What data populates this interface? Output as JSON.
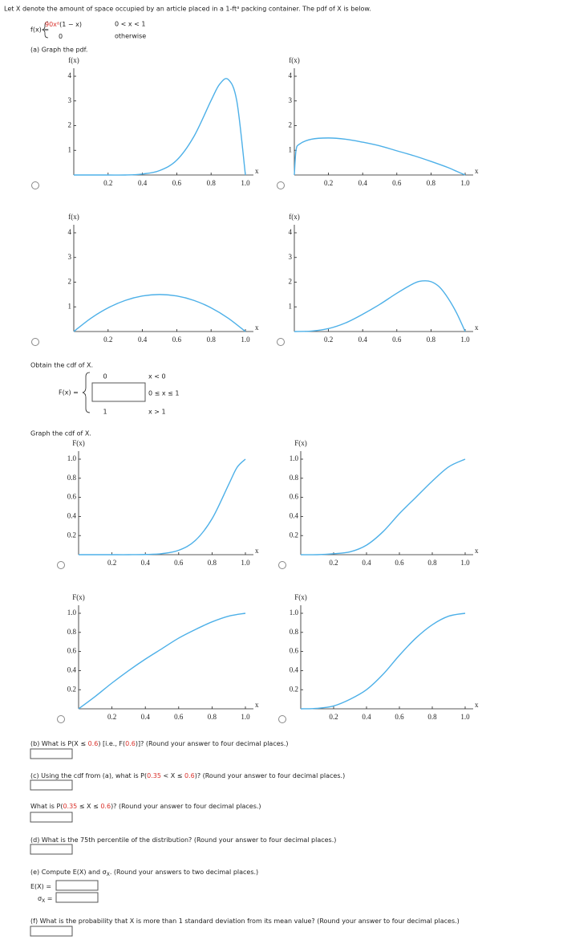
{
  "intro": "Let X denote the amount of space occupied by an article placed in a 1-ft³ packing container. The pdf of X is below.",
  "pdf": {
    "lhs": "f(x) =",
    "cases": [
      {
        "expr": [
          {
            "text": "90x⁸",
            "color": "#d9312b"
          },
          {
            "text": "(1 − x)"
          }
        ],
        "condition": "0 < x < 1"
      },
      {
        "expr": [
          {
            "text": "0"
          }
        ],
        "condition": "otherwise"
      }
    ]
  },
  "part_a": "(a) Graph the pdf.",
  "cdf_prompt": "Obtain the cdf of X.",
  "cdf": {
    "lhs": "F(x) =",
    "cases": [
      {
        "value": "0",
        "condition": "x < 0"
      },
      {
        "condition": "0 ≤ x ≤ 1"
      },
      {
        "value": "1",
        "condition": "x > 1"
      }
    ]
  },
  "cdf_graph_prompt": "Graph the cdf of X.",
  "chart_data": [
    {
      "type": "line",
      "y_label": "f(x)",
      "x_label": "x",
      "color": "#4db0e8",
      "xlim": [
        0,
        1
      ],
      "ylim": [
        0,
        4
      ],
      "xticks": [
        0.2,
        0.4,
        0.6,
        0.8,
        {
          "value": 1,
          "label": "1.0"
        }
      ],
      "yticks": [
        1,
        2,
        3,
        4
      ],
      "x": [
        0,
        0.1,
        0.2,
        0.3,
        0.4,
        0.5,
        0.6,
        0.7,
        0.8,
        0.85,
        0.9,
        0.95,
        1
      ],
      "values": [
        0,
        0,
        0,
        0,
        0.04,
        0.18,
        0.6,
        1.56,
        3.02,
        3.68,
        3.87,
        2.99,
        0
      ]
    },
    {
      "type": "line",
      "y_label": "f(x)",
      "x_label": "x",
      "color": "#4db0e8",
      "xlim": [
        0,
        1
      ],
      "ylim": [
        0,
        4
      ],
      "xticks": [
        0.2,
        0.4,
        0.6,
        0.8,
        {
          "value": 1,
          "label": "1.0"
        }
      ],
      "yticks": [
        1,
        2,
        3,
        4
      ],
      "x": [
        0,
        0.01,
        0.03,
        0.1,
        0.2,
        0.3,
        0.4,
        0.5,
        0.6,
        0.7,
        0.8,
        0.9,
        0.95,
        1
      ],
      "values": [
        0,
        1,
        1.25,
        1.45,
        1.5,
        1.45,
        1.33,
        1.18,
        0.98,
        0.78,
        0.55,
        0.3,
        0.15,
        0
      ]
    },
    {
      "type": "line",
      "y_label": "f(x)",
      "x_label": "x",
      "color": "#4db0e8",
      "xlim": [
        0,
        1
      ],
      "ylim": [
        0,
        4
      ],
      "xticks": [
        0.2,
        0.4,
        0.6,
        0.8,
        {
          "value": 1,
          "label": "1.0"
        }
      ],
      "yticks": [
        1,
        2,
        3,
        4
      ],
      "x": [
        0,
        0.1,
        0.2,
        0.3,
        0.4,
        0.5,
        0.6,
        0.7,
        0.8,
        0.9,
        1
      ],
      "values": [
        0,
        0.54,
        0.96,
        1.26,
        1.44,
        1.5,
        1.44,
        1.26,
        0.96,
        0.54,
        0
      ]
    },
    {
      "type": "line",
      "y_label": "f(x)",
      "x_label": "x",
      "color": "#4db0e8",
      "xlim": [
        0,
        1
      ],
      "ylim": [
        0,
        4
      ],
      "xticks": [
        0.2,
        0.4,
        0.6,
        0.8,
        {
          "value": 1,
          "label": "1.0"
        }
      ],
      "yticks": [
        1,
        2,
        3,
        4
      ],
      "x": [
        0,
        0.1,
        0.2,
        0.3,
        0.4,
        0.5,
        0.6,
        0.7,
        0.75,
        0.8,
        0.85,
        0.9,
        0.95,
        1
      ],
      "values": [
        0,
        0.02,
        0.12,
        0.35,
        0.7,
        1.1,
        1.55,
        1.95,
        2.05,
        2.02,
        1.8,
        1.35,
        0.75,
        0
      ]
    },
    {
      "type": "line",
      "y_label": "F(x)",
      "x_label": "x",
      "color": "#4db0e8",
      "xlim": [
        0,
        1
      ],
      "ylim": [
        0,
        1
      ],
      "xticks": [
        0.2,
        0.4,
        0.6,
        0.8,
        {
          "value": 1,
          "label": "1.0"
        }
      ],
      "yticks": [
        0.2,
        0.4,
        0.6,
        0.8,
        {
          "value": 1,
          "label": "1.0"
        }
      ],
      "x": [
        0,
        0.1,
        0.2,
        0.3,
        0.4,
        0.5,
        0.6,
        0.7,
        0.8,
        0.9,
        0.95,
        1
      ],
      "values": [
        0,
        0,
        0,
        0,
        0.002,
        0.011,
        0.046,
        0.149,
        0.376,
        0.736,
        0.914,
        1
      ]
    },
    {
      "type": "line",
      "y_label": "F(x)",
      "x_label": "x",
      "color": "#4db0e8",
      "xlim": [
        0,
        1
      ],
      "ylim": [
        0,
        1
      ],
      "xticks": [
        0.2,
        0.4,
        0.6,
        0.8,
        {
          "value": 1,
          "label": "1.0"
        }
      ],
      "yticks": [
        0.2,
        0.4,
        0.6,
        0.8,
        {
          "value": 1,
          "label": "1.0"
        }
      ],
      "x": [
        0,
        0.1,
        0.2,
        0.3,
        0.4,
        0.5,
        0.6,
        0.7,
        0.8,
        0.9,
        1
      ],
      "values": [
        0,
        0,
        0.01,
        0.03,
        0.1,
        0.24,
        0.43,
        0.6,
        0.77,
        0.92,
        1
      ]
    },
    {
      "type": "line",
      "y_label": "F(x)",
      "x_label": "x",
      "color": "#4db0e8",
      "xlim": [
        0,
        1
      ],
      "ylim": [
        0,
        1
      ],
      "xticks": [
        0.2,
        0.4,
        0.6,
        0.8,
        {
          "value": 1,
          "label": "1.0"
        }
      ],
      "yticks": [
        0.2,
        0.4,
        0.6,
        0.8,
        {
          "value": 1,
          "label": "1.0"
        }
      ],
      "x": [
        0,
        0.1,
        0.2,
        0.3,
        0.4,
        0.5,
        0.6,
        0.7,
        0.8,
        0.9,
        1
      ],
      "values": [
        0,
        0.13,
        0.27,
        0.4,
        0.52,
        0.63,
        0.74,
        0.83,
        0.91,
        0.97,
        1
      ]
    },
    {
      "type": "line",
      "y_label": "F(x)",
      "x_label": "x",
      "color": "#4db0e8",
      "xlim": [
        0,
        1
      ],
      "ylim": [
        0,
        1
      ],
      "xticks": [
        0.2,
        0.4,
        0.6,
        0.8,
        {
          "value": 1,
          "label": "1.0"
        }
      ],
      "yticks": [
        0.2,
        0.4,
        0.6,
        0.8,
        {
          "value": 1,
          "label": "1.0"
        }
      ],
      "x": [
        0,
        0.1,
        0.2,
        0.3,
        0.4,
        0.5,
        0.6,
        0.7,
        0.8,
        0.9,
        1
      ],
      "values": [
        0,
        0.005,
        0.03,
        0.1,
        0.2,
        0.36,
        0.56,
        0.74,
        0.88,
        0.97,
        1
      ]
    }
  ],
  "questions": {
    "b": [
      {
        "text": "(b) What is P(X ≤ "
      },
      {
        "text": "0.6",
        "color": "#d9312b"
      },
      {
        "text": ") [i.e., F("
      },
      {
        "text": "0.6",
        "color": "#d9312b"
      },
      {
        "text": ")]? (Round your answer to four decimal places.)"
      }
    ],
    "c": [
      {
        "text": "(c) Using the cdf from (a), what is P("
      },
      {
        "text": "0.35",
        "color": "#d9312b"
      },
      {
        "text": " < X ≤ "
      },
      {
        "text": "0.6",
        "color": "#d9312b"
      },
      {
        "text": ")? (Round your answer to four decimal places.)"
      }
    ],
    "c2": [
      {
        "text": "What is P("
      },
      {
        "text": "0.35",
        "color": "#d9312b"
      },
      {
        "text": " ≤ X ≤ "
      },
      {
        "text": "0.6",
        "color": "#d9312b"
      },
      {
        "text": ")? (Round your answer to four decimal places.)"
      }
    ],
    "d": [
      {
        "text": "(d) What is the 75th percentile of the distribution? (Round your answer to four decimal places.)"
      }
    ],
    "e": [
      {
        "text": "(e) Compute E(X) and σ"
      },
      {
        "text": "X",
        "sub": true
      },
      {
        "text": ". (Round your answers to two decimal places.)"
      }
    ],
    "e_mean": [
      {
        "text": "E(X) ="
      }
    ],
    "e_sd": [
      {
        "text": "σ"
      },
      {
        "text": "X",
        "sub": true
      },
      {
        "text": " ="
      }
    ],
    "f": [
      {
        "text": "(f) What is the probability that X is more than 1 standard deviation from its mean value? (Round your answer to four decimal places.)"
      }
    ]
  }
}
